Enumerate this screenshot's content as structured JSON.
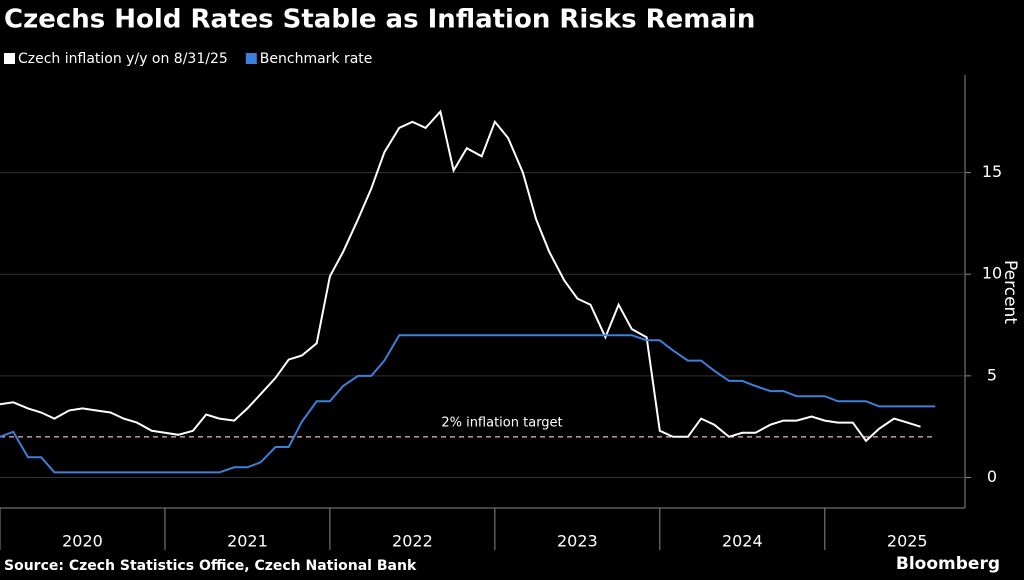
{
  "chart_data": {
    "type": "line",
    "title": "Czechs Hold Rates Stable as Inflation Risks Remain",
    "source": "Source: Czech Statistics Office, Czech National Bank",
    "logo": "Bloomberg",
    "y_label": "Percent",
    "x": [
      2020.0,
      2020.08,
      2020.17,
      2020.25,
      2020.33,
      2020.42,
      2020.5,
      2020.58,
      2020.67,
      2020.75,
      2020.83,
      2020.92,
      2021.0,
      2021.08,
      2021.17,
      2021.25,
      2021.33,
      2021.42,
      2021.5,
      2021.58,
      2021.67,
      2021.75,
      2021.83,
      2021.92,
      2022.0,
      2022.08,
      2022.17,
      2022.25,
      2022.33,
      2022.42,
      2022.5,
      2022.58,
      2022.67,
      2022.75,
      2022.83,
      2022.92,
      2023.0,
      2023.08,
      2023.17,
      2023.25,
      2023.33,
      2023.42,
      2023.5,
      2023.58,
      2023.67,
      2023.75,
      2023.83,
      2023.92,
      2024.0,
      2024.08,
      2024.17,
      2024.25,
      2024.33,
      2024.42,
      2024.5,
      2024.58,
      2024.67,
      2024.75,
      2024.83,
      2024.92,
      2025.0,
      2025.08,
      2025.17,
      2025.25,
      2025.33,
      2025.42,
      2025.5,
      2025.58,
      2025.67
    ],
    "series": [
      {
        "name": "Czech inflation y/y on 8/31/25",
        "color": "#ffffff",
        "values": [
          3.6,
          3.7,
          3.4,
          3.2,
          2.9,
          3.3,
          3.4,
          3.3,
          3.2,
          2.9,
          2.7,
          2.3,
          2.2,
          2.1,
          2.3,
          3.1,
          2.9,
          2.8,
          3.4,
          4.1,
          4.9,
          5.8,
          6.0,
          6.6,
          9.9,
          11.1,
          12.7,
          14.2,
          16.0,
          17.2,
          17.5,
          17.2,
          18.0,
          15.1,
          16.2,
          15.8,
          17.5,
          16.7,
          15.0,
          12.7,
          11.1,
          9.7,
          8.8,
          8.5,
          6.9,
          8.5,
          7.3,
          6.9,
          2.3,
          2.0,
          2.0,
          2.9,
          2.6,
          2.0,
          2.2,
          2.2,
          2.6,
          2.8,
          2.8,
          3.0,
          2.8,
          2.7,
          2.7,
          1.8,
          2.4,
          2.9,
          2.7,
          2.5,
          null
        ]
      },
      {
        "name": "Benchmark rate",
        "color": "#3d7fd9",
        "values": [
          2.0,
          2.25,
          1.0,
          1.0,
          0.25,
          0.25,
          0.25,
          0.25,
          0.25,
          0.25,
          0.25,
          0.25,
          0.25,
          0.25,
          0.25,
          0.25,
          0.25,
          0.5,
          0.5,
          0.75,
          1.5,
          1.5,
          2.75,
          3.75,
          3.75,
          4.5,
          5.0,
          5.0,
          5.75,
          7.0,
          7.0,
          7.0,
          7.0,
          7.0,
          7.0,
          7.0,
          7.0,
          7.0,
          7.0,
          7.0,
          7.0,
          7.0,
          7.0,
          7.0,
          7.0,
          7.0,
          7.0,
          6.75,
          6.75,
          6.25,
          5.75,
          5.75,
          5.25,
          4.75,
          4.75,
          4.5,
          4.25,
          4.25,
          4.0,
          4.0,
          4.0,
          3.75,
          3.75,
          3.75,
          3.5,
          3.5,
          3.5,
          3.5,
          3.5
        ]
      }
    ],
    "target_line": {
      "value": 2,
      "label": "2% inflation target",
      "color": "#e8b4b8"
    },
    "xlim": [
      2020,
      2025.85
    ],
    "xticks": [
      2020,
      2021,
      2022,
      2023,
      2024,
      2025
    ],
    "ylim": [
      -1.5,
      19.8
    ],
    "yticks": [
      0,
      5,
      10,
      15
    ],
    "grid": true
  }
}
